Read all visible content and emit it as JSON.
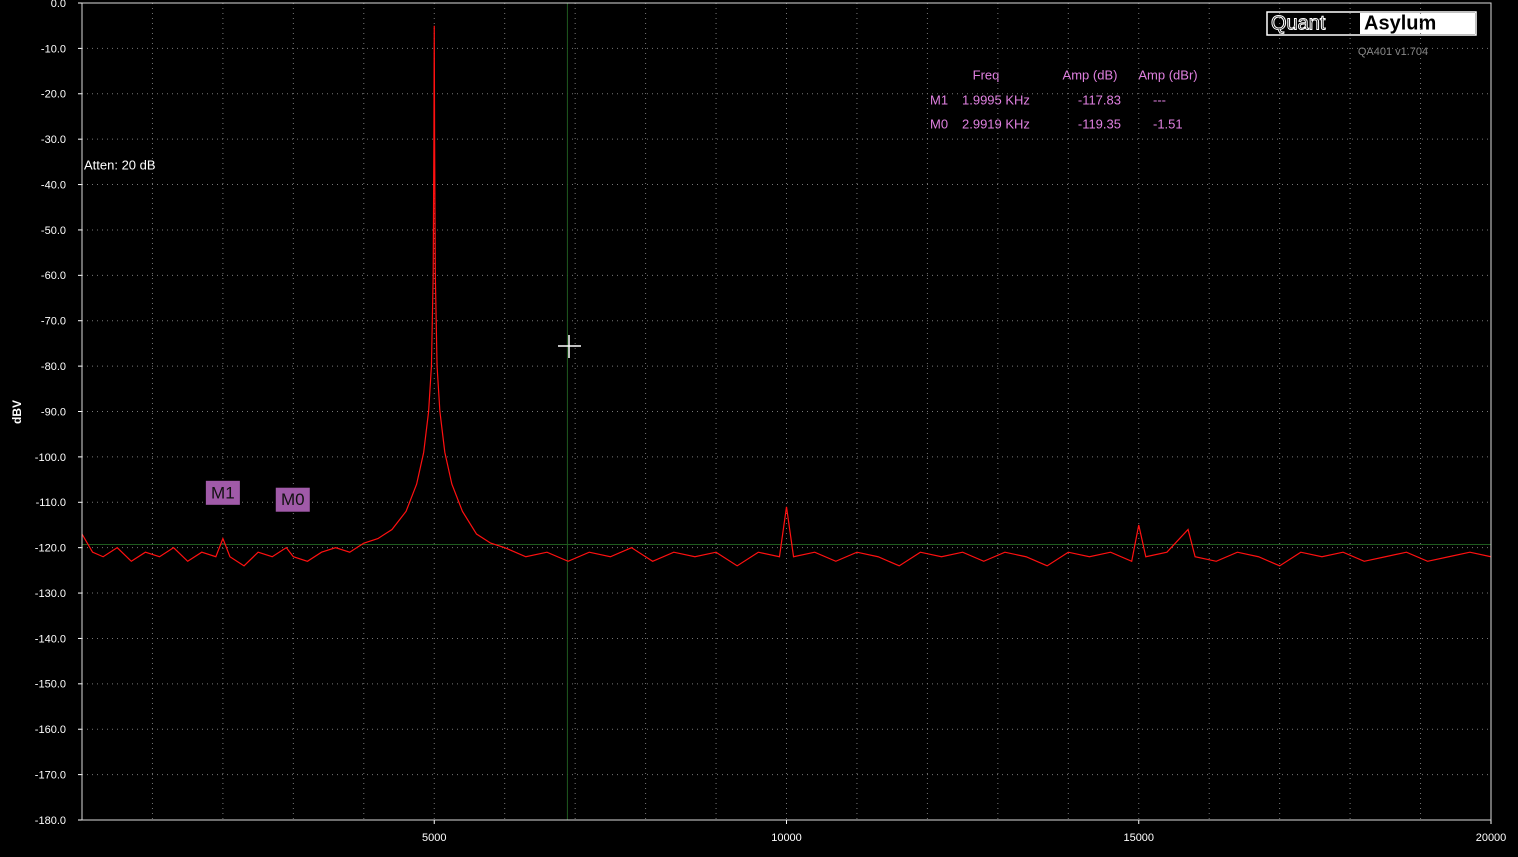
{
  "chart_data": {
    "type": "line",
    "ylabel": "dBV",
    "annotation": "Atten: 20 dB",
    "brand": {
      "left": "Quant",
      "right": "Asylum",
      "version": "QA401 v1.704"
    },
    "color": "#ff1010",
    "grid": true,
    "xlim": [
      0,
      20000
    ],
    "xticks": [
      5000,
      10000,
      15000,
      20000
    ],
    "xgrid": [
      1000,
      2000,
      3000,
      4000,
      5000,
      6000,
      7000,
      8000,
      9000,
      10000,
      11000,
      12000,
      13000,
      14000,
      15000,
      16000,
      17000,
      18000,
      19000
    ],
    "ylim": [
      -180,
      0
    ],
    "yticks": [
      {
        "value": 0,
        "label": "0.0"
      },
      {
        "value": -10,
        "label": "-10.0"
      },
      {
        "value": -20,
        "label": "-20.0"
      },
      {
        "value": -30,
        "label": "-30.0"
      },
      {
        "value": -40,
        "label": "-40.0"
      },
      {
        "value": -50,
        "label": "-50.0"
      },
      {
        "value": -60,
        "label": "-60.0"
      },
      {
        "value": -70,
        "label": "-70.0"
      },
      {
        "value": -80,
        "label": "-80.0"
      },
      {
        "value": -90,
        "label": "-90.0"
      },
      {
        "value": -100,
        "label": "-100.0"
      },
      {
        "value": -110,
        "label": "-110.0"
      },
      {
        "value": -120,
        "label": "-120.0"
      },
      {
        "value": -130,
        "label": "-130.0"
      },
      {
        "value": -140,
        "label": "-140.0"
      },
      {
        "value": -150,
        "label": "-150.0"
      },
      {
        "value": -160,
        "label": "-160.0"
      },
      {
        "value": -170,
        "label": "-170.0"
      },
      {
        "value": -180,
        "label": "-180.0"
      }
    ],
    "cursor": {
      "x": 6890,
      "y": -119.3
    },
    "marker_headers": [
      "Freq",
      "Amp (dB)",
      "Amp (dBr)"
    ],
    "markers": [
      {
        "name": "M1",
        "freq": 1999.5,
        "freq_label": "1.9995 KHz",
        "amp_db": -117.83,
        "amp_dbr": "---"
      },
      {
        "name": "M0",
        "freq": 2991.9,
        "freq_label": "2.9919 KHz",
        "amp_db": -119.35,
        "amp_dbr": -1.51
      }
    ],
    "x": [
      0,
      150,
      300,
      500,
      700,
      900,
      1100,
      1300,
      1500,
      1700,
      1900,
      2000,
      2100,
      2300,
      2500,
      2700,
      2900,
      3000,
      3200,
      3400,
      3600,
      3800,
      4000,
      4200,
      4400,
      4600,
      4750,
      4850,
      4920,
      4960,
      4985,
      4995,
      5000,
      5005,
      5015,
      5040,
      5080,
      5150,
      5250,
      5400,
      5600,
      5800,
      6000,
      6300,
      6600,
      6900,
      7200,
      7500,
      7800,
      8100,
      8400,
      8700,
      9000,
      9300,
      9600,
      9900,
      10000,
      10100,
      10400,
      10700,
      11000,
      11300,
      11600,
      11900,
      12200,
      12500,
      12800,
      13100,
      13400,
      13700,
      14000,
      14300,
      14600,
      14900,
      15000,
      15100,
      15400,
      15700,
      15800,
      16100,
      16400,
      16700,
      17000,
      17300,
      17600,
      17900,
      18200,
      18500,
      18800,
      19100,
      19400,
      19700,
      20000
    ],
    "values": [
      -117,
      -121,
      -122,
      -120,
      -123,
      -121,
      -122,
      -120,
      -123,
      -121,
      -122,
      -118,
      -122,
      -124,
      -121,
      -122,
      -120,
      -122,
      -123,
      -121,
      -120,
      -121,
      -119,
      -118,
      -116,
      -112,
      -106,
      -99,
      -90,
      -80,
      -60,
      -30,
      -5,
      -30,
      -60,
      -80,
      -90,
      -99,
      -106,
      -112,
      -117,
      -119,
      -120,
      -122,
      -121,
      -123,
      -121,
      -122,
      -120,
      -123,
      -121,
      -122,
      -121,
      -124,
      -121,
      -122,
      -111,
      -122,
      -121,
      -123,
      -121,
      -122,
      -124,
      -121,
      -122,
      -121,
      -123,
      -121,
      -122,
      -124,
      -121,
      -122,
      -121,
      -123,
      -115,
      -122,
      -121,
      -116,
      -122,
      -123,
      -121,
      -122,
      -124,
      -121,
      -122,
      -121,
      -123,
      -122,
      -121,
      -123,
      -122,
      -121,
      -122
    ]
  }
}
